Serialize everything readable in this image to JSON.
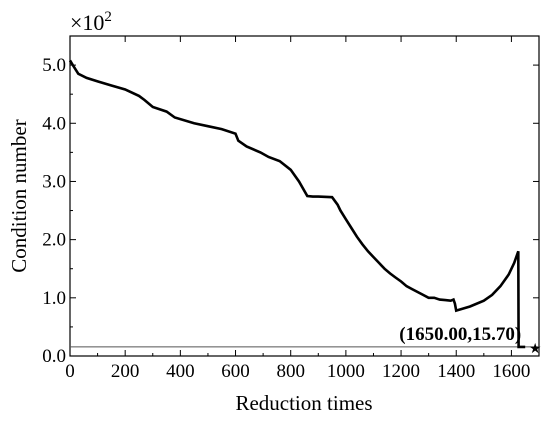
{
  "chart_data": {
    "type": "line",
    "title": "",
    "xlabel": "Reduction times",
    "ylabel": "Condition number",
    "y_multiplier": {
      "base": "×10",
      "exponent": "2"
    },
    "xlim": [
      0,
      1700
    ],
    "ylim": [
      0,
      5.5
    ],
    "x_ticks": [
      0,
      200,
      400,
      600,
      800,
      1000,
      1200,
      1400,
      1600
    ],
    "x_tick_labels": [
      "0",
      "200",
      "400",
      "600",
      "800",
      "1000",
      "1200",
      "1400",
      "1600"
    ],
    "y_ticks": [
      0,
      1,
      2,
      3,
      4,
      5
    ],
    "y_tick_labels": [
      "0.0",
      "1.0",
      "2.0",
      "3.0",
      "4.0",
      "5.0"
    ],
    "grid": false,
    "reference_line": {
      "y": 0.157
    },
    "annotation": {
      "text": "(1650.00,15.70)",
      "x": 1650,
      "y": 0.157,
      "marker": "★"
    },
    "series": [
      {
        "x": [
          0,
          10,
          30,
          60,
          100,
          150,
          200,
          250,
          270,
          300,
          350,
          380,
          450,
          500,
          550,
          600,
          610,
          640,
          690,
          720,
          760,
          800,
          830,
          860,
          880,
          900,
          950,
          970,
          980,
          1000,
          1020,
          1040,
          1060,
          1080,
          1100,
          1120,
          1140,
          1160,
          1180,
          1200,
          1220,
          1240,
          1260,
          1280,
          1300,
          1320,
          1340,
          1360,
          1380,
          1390,
          1395,
          1400,
          1450,
          1500,
          1530,
          1560,
          1590,
          1610,
          1625,
          1626,
          1650
        ],
        "values": [
          5.08,
          5.0,
          4.85,
          4.78,
          4.72,
          4.65,
          4.58,
          4.47,
          4.4,
          4.28,
          4.2,
          4.1,
          4.0,
          3.95,
          3.9,
          3.82,
          3.7,
          3.6,
          3.5,
          3.42,
          3.35,
          3.2,
          3.0,
          2.75,
          2.74,
          2.74,
          2.73,
          2.6,
          2.5,
          2.35,
          2.2,
          2.05,
          1.92,
          1.8,
          1.7,
          1.6,
          1.5,
          1.42,
          1.35,
          1.28,
          1.2,
          1.15,
          1.1,
          1.05,
          1.0,
          1.0,
          0.97,
          0.96,
          0.95,
          0.97,
          0.9,
          0.78,
          0.85,
          0.95,
          1.05,
          1.2,
          1.4,
          1.6,
          1.8,
          0.157,
          0.157
        ]
      }
    ]
  }
}
